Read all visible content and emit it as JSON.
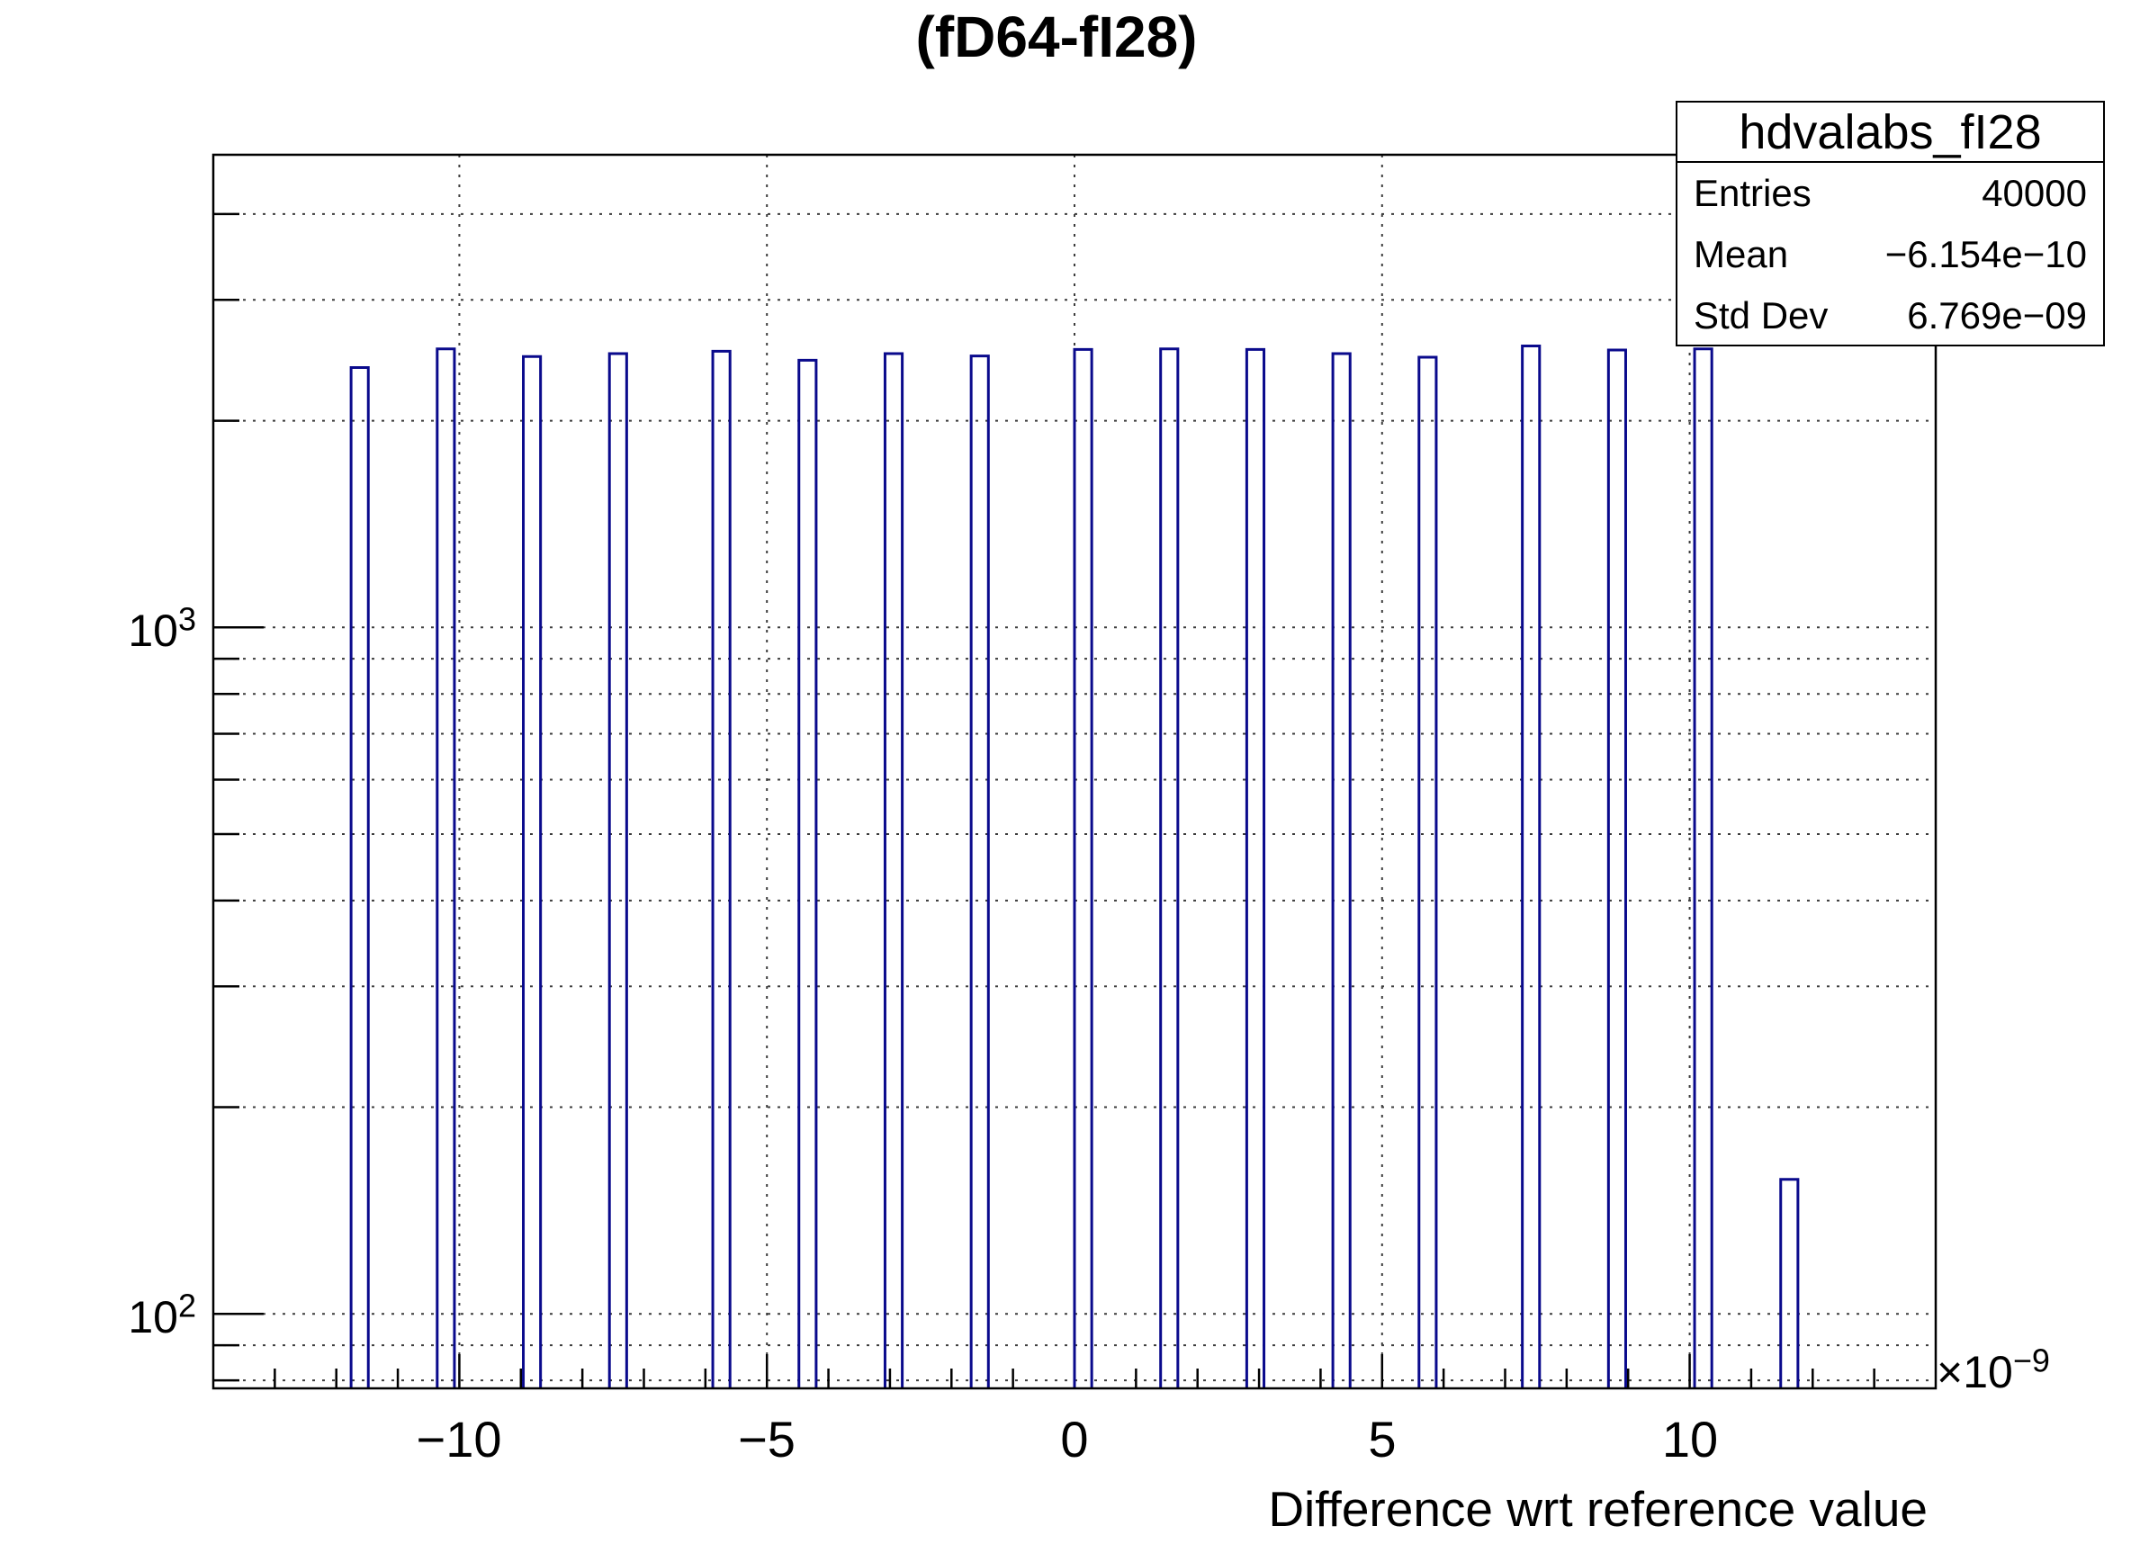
{
  "title": "(fD64-fI28)",
  "stats_box": {
    "title": "hdvalabs_fI28",
    "rows": [
      {
        "label": "Entries",
        "value": "40000"
      },
      {
        "label": "Mean",
        "value": "−6.154e−10"
      },
      {
        "label": "Std Dev",
        "value": "6.769e−09"
      }
    ]
  },
  "x_axis": {
    "title": "Difference wrt reference value",
    "tick_labels": [
      "−10",
      "−5",
      "0",
      "5",
      "10"
    ],
    "multiplier_base": "×10",
    "multiplier_exp": "−9"
  },
  "y_axis": {
    "labels": [
      {
        "base": "10",
        "exp": "3",
        "value": 1000
      },
      {
        "base": "10",
        "exp": "2",
        "value": 100
      }
    ]
  },
  "colors": {
    "bar_outline": "#0a0a8c",
    "gridline": "#3c3c3c",
    "frame": "#000000",
    "background": "#ffffff",
    "text": "#000000"
  },
  "chart_data": {
    "type": "bar",
    "subtype": "histogram",
    "title": "(fD64-fI28)",
    "xlabel": "Difference wrt reference value",
    "x_unit_multiplier": "1e-9",
    "xlim": [
      -14,
      14
    ],
    "x_major_ticks": [
      -10,
      -5,
      0,
      5,
      10
    ],
    "x_minor_tick_step": 1,
    "ylog": true,
    "ylim": [
      77.9,
      4880
    ],
    "y_major_gridlines": [
      100,
      1000
    ],
    "grid": true,
    "bin_width": 0.28,
    "bars": [
      {
        "x_left": -11.76,
        "count": 2390
      },
      {
        "x_left": -10.36,
        "count": 2545
      },
      {
        "x_left": -8.96,
        "count": 2480
      },
      {
        "x_left": -7.56,
        "count": 2505
      },
      {
        "x_left": -5.88,
        "count": 2525
      },
      {
        "x_left": -4.48,
        "count": 2450
      },
      {
        "x_left": -3.08,
        "count": 2505
      },
      {
        "x_left": -1.68,
        "count": 2485
      },
      {
        "x_left": 0.0,
        "count": 2540
      },
      {
        "x_left": 1.4,
        "count": 2545
      },
      {
        "x_left": 2.8,
        "count": 2540
      },
      {
        "x_left": 4.2,
        "count": 2505
      },
      {
        "x_left": 5.6,
        "count": 2475
      },
      {
        "x_left": 7.28,
        "count": 2570
      },
      {
        "x_left": 8.68,
        "count": 2535
      },
      {
        "x_left": 10.08,
        "count": 2545
      },
      {
        "x_left": 11.48,
        "count": 157
      }
    ]
  }
}
